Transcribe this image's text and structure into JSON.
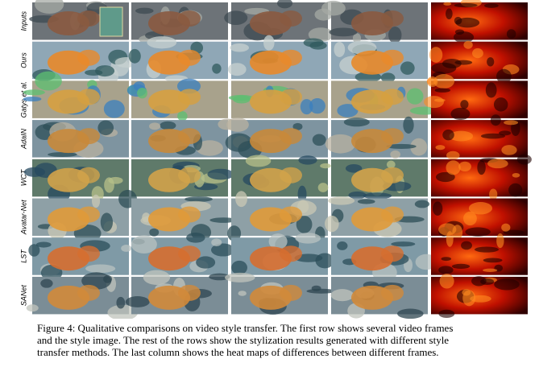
{
  "figure": {
    "row_labels": [
      "Inputs",
      "Ours",
      "Gatys et al.",
      "AdaIN",
      "WCT",
      "Avatar-Net",
      "LST",
      "SANet"
    ]
  },
  "caption": {
    "lines": [
      "Figure 4: Qualitative comparisons on video style transfer. The first row shows several video frames",
      "and the style image. The rest of the rows show the stylization results generated with different style",
      "transfer methods. The last column shows the heat maps of differences between different frames."
    ]
  }
}
